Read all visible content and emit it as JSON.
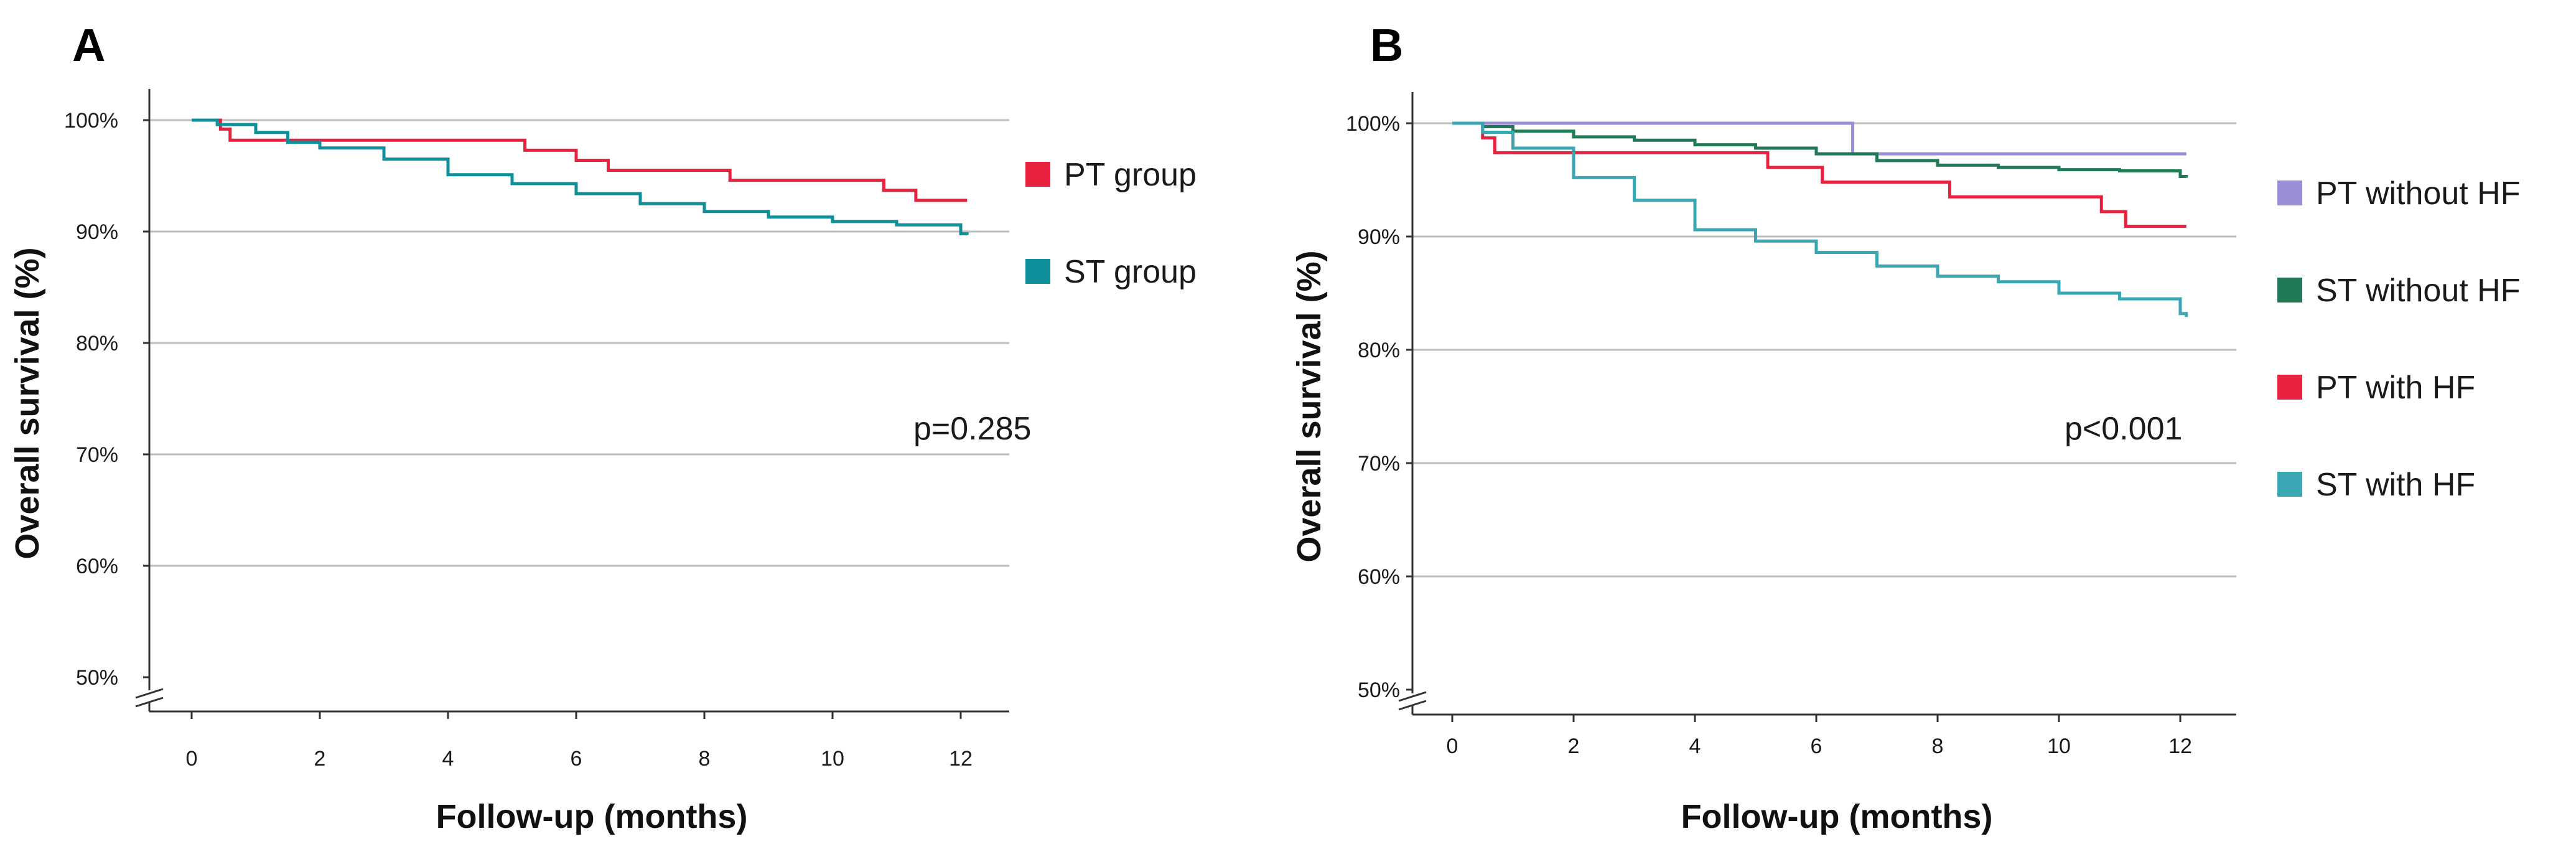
{
  "chart_data": [
    {
      "type": "line",
      "subtype": "kaplan-meier",
      "panel_label": "A",
      "xlabel": "Follow-up (months)",
      "ylabel": "Overall survival (%)",
      "xlim": [
        -0.6,
        13
      ],
      "ylim": [
        50,
        100
      ],
      "xticks": [
        "0",
        "2",
        "4",
        "6",
        "8",
        "10",
        "12"
      ],
      "yticks": [
        "100%",
        "90%",
        "80%",
        "70%",
        "60%",
        "50%"
      ],
      "axis_break": true,
      "grid": "horizontal",
      "annotation": "p=0.285",
      "series": [
        {
          "name": "PT group",
          "color": "#e8213f",
          "x": [
            0,
            0.45,
            0.6,
            5.2,
            6.0,
            6.5,
            8.4,
            10.8,
            11.3,
            12.1
          ],
          "y": [
            100,
            99.2,
            98.2,
            97.3,
            96.4,
            95.5,
            94.6,
            93.7,
            92.8,
            92.8
          ]
        },
        {
          "name": "ST group",
          "color": "#0f8f9a",
          "x": [
            0,
            0.4,
            1,
            1.5,
            2,
            3,
            4,
            5,
            6,
            7,
            8,
            9,
            10,
            11,
            12,
            12.1
          ],
          "y": [
            100,
            99.6,
            98.9,
            98,
            97.5,
            96.5,
            95.1,
            94.3,
            93.4,
            92.5,
            91.8,
            91.3,
            90.9,
            90.6,
            89.8,
            89.7
          ]
        }
      ]
    },
    {
      "type": "line",
      "subtype": "kaplan-meier",
      "panel_label": "B",
      "xlabel": "Follow-up (months)",
      "ylabel": "Overall survival (%)",
      "xlim": [
        -0.6,
        13
      ],
      "ylim": [
        50,
        100
      ],
      "xticks": [
        "0",
        "2",
        "4",
        "6",
        "8",
        "10",
        "12"
      ],
      "yticks": [
        "100%",
        "90%",
        "80%",
        "70%",
        "60%",
        "50%"
      ],
      "axis_break": true,
      "grid": "horizontal",
      "annotation": "p<0.001",
      "series": [
        {
          "name": "PT without HF",
          "color": "#9b8ed6",
          "x": [
            0,
            6.6,
            12.1
          ],
          "y": [
            100,
            97.3,
            97.3
          ]
        },
        {
          "name": "ST without HF",
          "color": "#1f7a55",
          "x": [
            0,
            0.5,
            1,
            2,
            3,
            4,
            5,
            6,
            7,
            8,
            9,
            10,
            11,
            12,
            12.1
          ],
          "y": [
            100,
            99.7,
            99.3,
            98.8,
            98.5,
            98.1,
            97.8,
            97.3,
            96.7,
            96.3,
            96.1,
            95.9,
            95.8,
            95.3,
            95.2
          ]
        },
        {
          "name": "PT with HF",
          "color": "#e8213f",
          "x": [
            0,
            0.5,
            0.7,
            5.2,
            6.1,
            8.2,
            10.7,
            11.1,
            12.1
          ],
          "y": [
            100,
            98.7,
            97.4,
            96.1,
            94.8,
            93.5,
            92.2,
            90.9,
            90.9
          ]
        },
        {
          "name": "ST with HF",
          "color": "#3aa7b5",
          "x": [
            0,
            0.5,
            1,
            2,
            3,
            4,
            5,
            6,
            7,
            8,
            9,
            10,
            11,
            12,
            12.1
          ],
          "y": [
            100,
            99.2,
            97.8,
            95.2,
            93.2,
            90.6,
            89.6,
            88.6,
            87.4,
            86.5,
            86,
            85,
            84.5,
            83.2,
            82.9
          ]
        }
      ]
    }
  ]
}
